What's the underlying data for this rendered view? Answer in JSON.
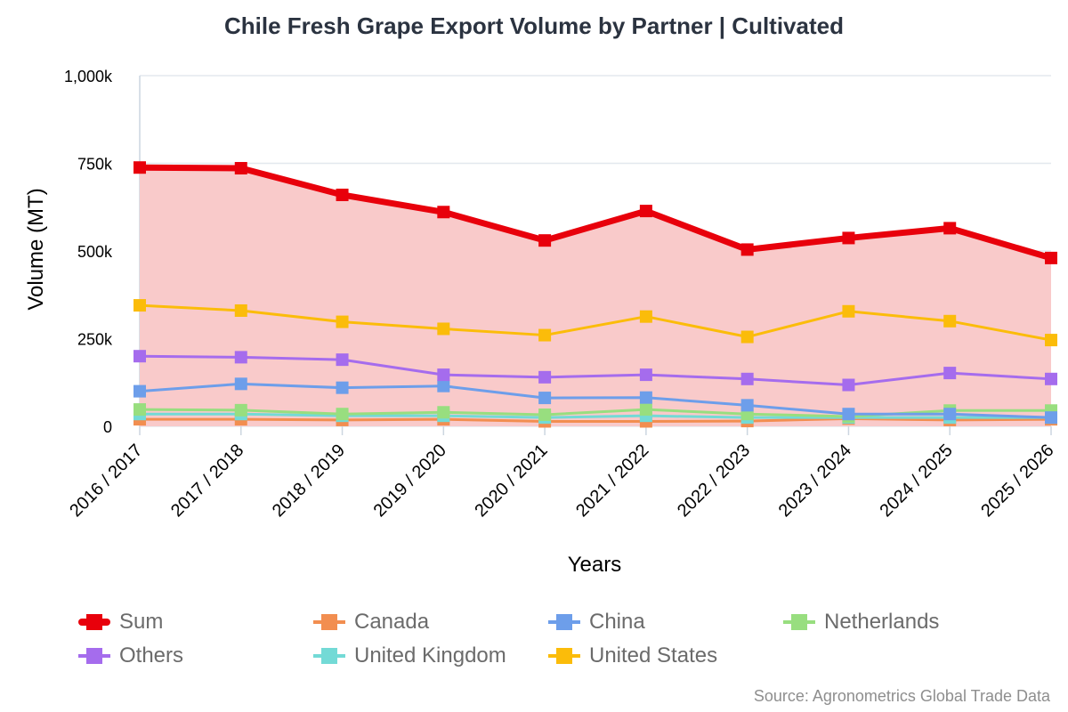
{
  "chart_data": {
    "type": "line",
    "title": "Chile Fresh Grape Export Volume by Partner | Cultivated",
    "xlabel": "Years",
    "ylabel": "Volume (MT)",
    "ylim": [
      0,
      1000000
    ],
    "yticks": [
      0,
      250000,
      500000,
      750000,
      1000000
    ],
    "ytick_labels": [
      "0",
      "250k",
      "500k",
      "750k",
      "1,000k"
    ],
    "grid": true,
    "legend_position": "bottom",
    "categories": [
      "2016 / 2017",
      "2017 / 2018",
      "2018 / 2019",
      "2019 / 2020",
      "2020 / 2021",
      "2021 / 2022",
      "2022 / 2023",
      "2023 / 2024",
      "2024 / 2025",
      "2025 / 2026"
    ],
    "series": [
      {
        "name": "Sum",
        "color": "#e8000b",
        "fill": true,
        "values": [
          738000,
          736000,
          660000,
          611000,
          530000,
          614000,
          504000,
          537000,
          565000,
          480000
        ]
      },
      {
        "name": "Canada",
        "color": "#f28e50",
        "values": [
          20000,
          20000,
          18000,
          20000,
          14000,
          14000,
          15000,
          22000,
          18000,
          20000
        ]
      },
      {
        "name": "China",
        "color": "#6d9eea",
        "values": [
          100000,
          121000,
          110000,
          115000,
          81000,
          82000,
          60000,
          35000,
          35000,
          25000
        ]
      },
      {
        "name": "Netherlands",
        "color": "#98de7f",
        "values": [
          48000,
          46000,
          35000,
          40000,
          33000,
          48000,
          35000,
          28000,
          45000,
          45000
        ]
      },
      {
        "name": "Others",
        "color": "#a56ced",
        "values": [
          200000,
          197000,
          190000,
          147000,
          140000,
          147000,
          135000,
          118000,
          152000,
          135000
        ]
      },
      {
        "name": "United Kingdom",
        "color": "#73dad6",
        "values": [
          35000,
          35000,
          30000,
          30000,
          25000,
          30000,
          25000,
          25000,
          25000,
          25000
        ]
      },
      {
        "name": "United States",
        "color": "#fbbc0a",
        "values": [
          345000,
          330000,
          298000,
          278000,
          260000,
          313000,
          255000,
          328000,
          300000,
          246000
        ]
      }
    ],
    "sum_fill_color": "#f9caca",
    "source": "Source: Agronometrics Global Trade Data"
  }
}
